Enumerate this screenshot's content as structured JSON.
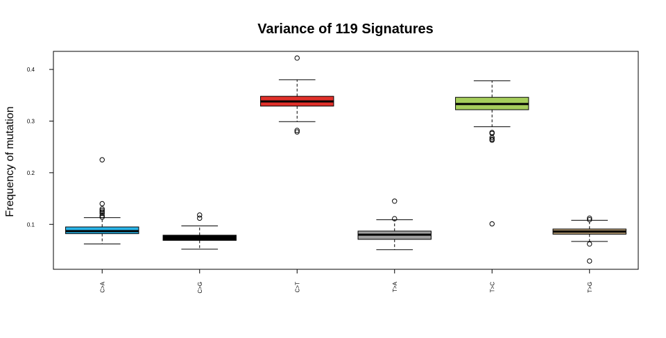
{
  "chart_data": {
    "type": "boxplot",
    "title": "Variance of 119 Signatures",
    "xlabel": "",
    "ylabel": "Frequency of mutation",
    "ylim": [
      0.013,
      0.435
    ],
    "yticks": [
      "0.1",
      "0.2",
      "0.3",
      "0.4"
    ],
    "ytick_values": [
      0.1,
      0.2,
      0.3,
      0.4
    ],
    "grid": false,
    "legend": "none",
    "categories": [
      "C>A",
      "C>G",
      "C>T",
      "T>A",
      "T>C",
      "T>G"
    ],
    "boxes": [
      {
        "category": "C>A",
        "color": "#29B5E8",
        "whisker_low": 0.062,
        "q1": 0.082,
        "median": 0.087,
        "q3": 0.095,
        "whisker_high": 0.113,
        "outliers": [
          0.225,
          0.14,
          0.13,
          0.127,
          0.124,
          0.121,
          0.117,
          0.114
        ]
      },
      {
        "category": "C>G",
        "color": "#000000",
        "whisker_low": 0.052,
        "q1": 0.069,
        "median": 0.074,
        "q3": 0.079,
        "whisker_high": 0.097,
        "outliers": [
          0.118,
          0.112
        ]
      },
      {
        "category": "C>T",
        "color": "#E0302A",
        "whisker_low": 0.299,
        "q1": 0.329,
        "median": 0.338,
        "q3": 0.348,
        "whisker_high": 0.38,
        "outliers": [
          0.422,
          0.282,
          0.279
        ]
      },
      {
        "category": "T>A",
        "color": "#A0A0A0",
        "whisker_low": 0.051,
        "q1": 0.071,
        "median": 0.08,
        "q3": 0.087,
        "whisker_high": 0.109,
        "outliers": [
          0.145,
          0.111
        ]
      },
      {
        "category": "T>C",
        "color": "#A6CE5C",
        "whisker_low": 0.289,
        "q1": 0.322,
        "median": 0.333,
        "q3": 0.346,
        "whisker_high": 0.378,
        "outliers": [
          0.278,
          0.276,
          0.268,
          0.265,
          0.263,
          0.101
        ]
      },
      {
        "category": "T>G",
        "color": "#B59C73",
        "whisker_low": 0.067,
        "q1": 0.081,
        "median": 0.086,
        "q3": 0.091,
        "whisker_high": 0.108,
        "outliers": [
          0.112,
          0.109,
          0.062,
          0.029
        ]
      }
    ]
  }
}
